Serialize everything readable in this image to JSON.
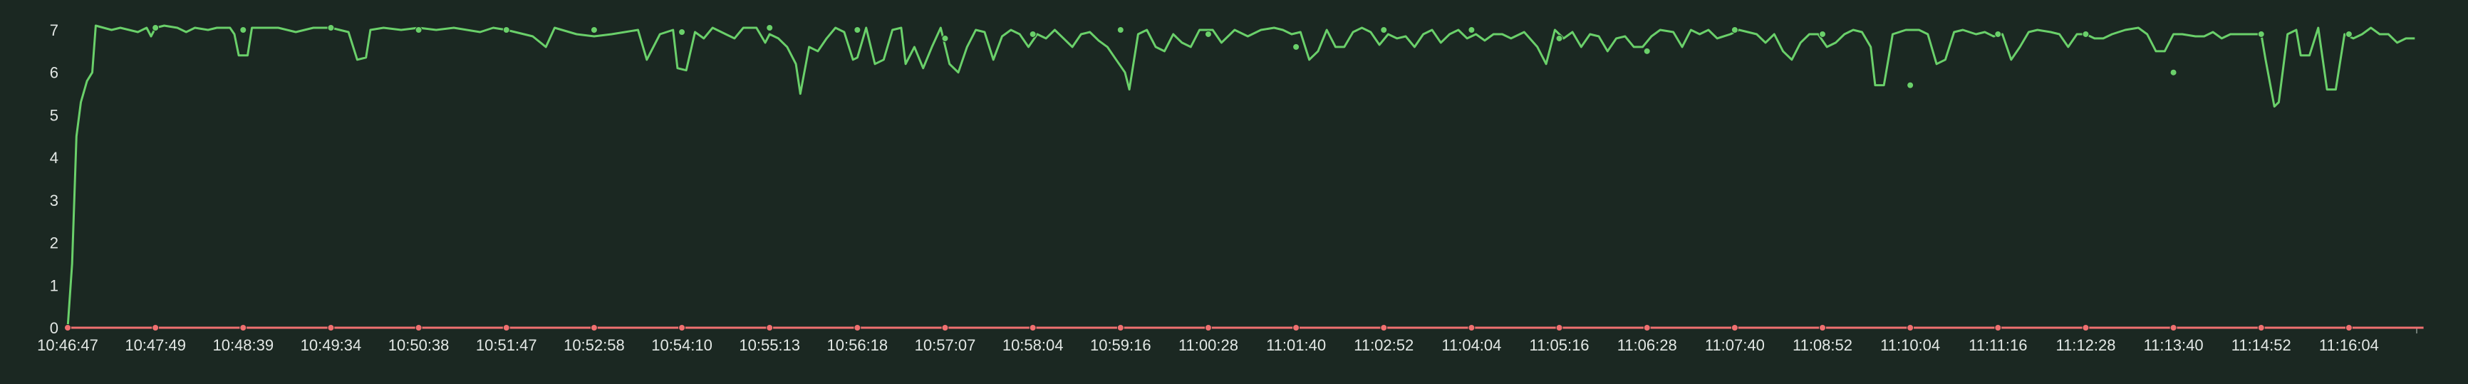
{
  "colors": {
    "background": "#1b2822",
    "series_green": "#6ad06a",
    "series_red": "#f07070",
    "axis": "#6f7a74",
    "tick_label": "#e3e8e5"
  },
  "chart_data": {
    "type": "line",
    "x_tick_labels": [
      "10:46:47",
      "10:47:49",
      "10:48:39",
      "10:49:34",
      "10:50:38",
      "10:51:47",
      "10:52:58",
      "10:54:10",
      "10:55:13",
      "10:56:18",
      "10:57:07",
      "10:58:04",
      "10:59:16",
      "11:00:28",
      "11:01:40",
      "11:02:52",
      "11:04:04",
      "11:05:16",
      "11:06:28",
      "11:07:40",
      "11:08:52",
      "11:10:04",
      "11:11:16",
      "11:12:28",
      "11:13:40",
      "11:14:52",
      "11:16:04"
    ],
    "ylim": [
      0,
      7
    ],
    "y_ticks": [
      0,
      1,
      2,
      3,
      4,
      5,
      6,
      7
    ],
    "grid": false,
    "legend": "none",
    "series": [
      {
        "color": "#6ad06a",
        "marker_values": [
          0,
          7.05,
          7.0,
          7.05,
          7.0,
          7.0,
          7.0,
          6.95,
          7.05,
          7.0,
          6.8,
          6.9,
          7.0,
          6.9,
          6.6,
          7.0,
          7.0,
          6.8,
          6.5,
          7.0,
          6.9,
          5.7,
          6.9,
          6.9,
          6.0,
          6.9,
          6.9
        ],
        "points": [
          [
            0,
            0
          ],
          [
            0.05,
            1.5
          ],
          [
            0.1,
            4.5
          ],
          [
            0.15,
            5.3
          ],
          [
            0.22,
            5.8
          ],
          [
            0.28,
            6.0
          ],
          [
            0.32,
            7.1
          ],
          [
            0.5,
            7.0
          ],
          [
            0.6,
            7.05
          ],
          [
            0.8,
            6.95
          ],
          [
            0.9,
            7.05
          ],
          [
            0.95,
            6.85
          ],
          [
            1,
            7.05
          ],
          [
            1.1,
            7.1
          ],
          [
            1.25,
            7.05
          ],
          [
            1.35,
            6.95
          ],
          [
            1.45,
            7.05
          ],
          [
            1.6,
            7.0
          ],
          [
            1.7,
            7.05
          ],
          [
            1.85,
            7.05
          ],
          [
            1.9,
            6.9
          ],
          [
            1.95,
            6.4
          ],
          [
            2.05,
            6.4
          ],
          [
            2.1,
            7.05
          ],
          [
            2.4,
            7.05
          ],
          [
            2.6,
            6.95
          ],
          [
            2.8,
            7.05
          ],
          [
            3,
            7.05
          ],
          [
            3.2,
            6.95
          ],
          [
            3.3,
            6.3
          ],
          [
            3.4,
            6.35
          ],
          [
            3.45,
            7.0
          ],
          [
            3.6,
            7.05
          ],
          [
            3.8,
            7.0
          ],
          [
            4,
            7.05
          ],
          [
            4.2,
            7.0
          ],
          [
            4.4,
            7.05
          ],
          [
            4.7,
            6.95
          ],
          [
            4.85,
            7.05
          ],
          [
            5,
            7.0
          ],
          [
            5.3,
            6.85
          ],
          [
            5.45,
            6.6
          ],
          [
            5.55,
            7.05
          ],
          [
            5.8,
            6.9
          ],
          [
            6,
            6.85
          ],
          [
            6.2,
            6.9
          ],
          [
            6.5,
            7.0
          ],
          [
            6.6,
            6.3
          ],
          [
            6.75,
            6.9
          ],
          [
            6.9,
            7.0
          ],
          [
            6.95,
            6.1
          ],
          [
            7.05,
            6.05
          ],
          [
            7.15,
            6.95
          ],
          [
            7.25,
            6.8
          ],
          [
            7.35,
            7.05
          ],
          [
            7.5,
            6.9
          ],
          [
            7.6,
            6.8
          ],
          [
            7.7,
            7.05
          ],
          [
            7.85,
            7.05
          ],
          [
            7.95,
            6.7
          ],
          [
            8,
            6.9
          ],
          [
            8.1,
            6.8
          ],
          [
            8.2,
            6.6
          ],
          [
            8.3,
            6.2
          ],
          [
            8.35,
            5.5
          ],
          [
            8.45,
            6.6
          ],
          [
            8.55,
            6.5
          ],
          [
            8.65,
            6.8
          ],
          [
            8.75,
            7.05
          ],
          [
            8.85,
            6.95
          ],
          [
            8.95,
            6.3
          ],
          [
            9,
            6.35
          ],
          [
            9.1,
            7.05
          ],
          [
            9.2,
            6.2
          ],
          [
            9.3,
            6.3
          ],
          [
            9.4,
            7.0
          ],
          [
            9.5,
            7.05
          ],
          [
            9.55,
            6.2
          ],
          [
            9.65,
            6.6
          ],
          [
            9.75,
            6.1
          ],
          [
            9.85,
            6.6
          ],
          [
            9.95,
            7.05
          ],
          [
            10.05,
            6.2
          ],
          [
            10.15,
            6.0
          ],
          [
            10.25,
            6.6
          ],
          [
            10.35,
            7.0
          ],
          [
            10.45,
            6.95
          ],
          [
            10.55,
            6.3
          ],
          [
            10.65,
            6.85
          ],
          [
            10.75,
            7.0
          ],
          [
            10.85,
            6.9
          ],
          [
            10.95,
            6.6
          ],
          [
            11.05,
            6.9
          ],
          [
            11.15,
            6.8
          ],
          [
            11.25,
            7.0
          ],
          [
            11.35,
            6.8
          ],
          [
            11.45,
            6.6
          ],
          [
            11.55,
            6.9
          ],
          [
            11.65,
            6.95
          ],
          [
            11.75,
            6.75
          ],
          [
            11.85,
            6.6
          ],
          [
            11.95,
            6.3
          ],
          [
            12.05,
            6.0
          ],
          [
            12.1,
            5.6
          ],
          [
            12.2,
            6.9
          ],
          [
            12.3,
            7.0
          ],
          [
            12.4,
            6.6
          ],
          [
            12.5,
            6.5
          ],
          [
            12.6,
            6.9
          ],
          [
            12.7,
            6.7
          ],
          [
            12.8,
            6.6
          ],
          [
            12.9,
            7.0
          ],
          [
            13.05,
            7.0
          ],
          [
            13.15,
            6.7
          ],
          [
            13.3,
            7.0
          ],
          [
            13.45,
            6.85
          ],
          [
            13.6,
            7.0
          ],
          [
            13.75,
            7.05
          ],
          [
            13.85,
            7.0
          ],
          [
            13.95,
            6.9
          ],
          [
            14.05,
            6.95
          ],
          [
            14.15,
            6.3
          ],
          [
            14.25,
            6.5
          ],
          [
            14.35,
            7.0
          ],
          [
            14.45,
            6.6
          ],
          [
            14.55,
            6.6
          ],
          [
            14.65,
            6.95
          ],
          [
            14.75,
            7.05
          ],
          [
            14.85,
            6.95
          ],
          [
            14.95,
            6.65
          ],
          [
            15.05,
            6.9
          ],
          [
            15.15,
            6.8
          ],
          [
            15.25,
            6.85
          ],
          [
            15.35,
            6.6
          ],
          [
            15.45,
            6.9
          ],
          [
            15.55,
            7.0
          ],
          [
            15.65,
            6.7
          ],
          [
            15.75,
            6.9
          ],
          [
            15.85,
            7.0
          ],
          [
            15.95,
            6.8
          ],
          [
            16.05,
            6.9
          ],
          [
            16.15,
            6.75
          ],
          [
            16.25,
            6.9
          ],
          [
            16.35,
            6.9
          ],
          [
            16.45,
            6.8
          ],
          [
            16.6,
            6.95
          ],
          [
            16.75,
            6.6
          ],
          [
            16.85,
            6.2
          ],
          [
            16.95,
            7.0
          ],
          [
            17.05,
            6.8
          ],
          [
            17.15,
            6.95
          ],
          [
            17.25,
            6.6
          ],
          [
            17.35,
            6.9
          ],
          [
            17.45,
            6.85
          ],
          [
            17.55,
            6.5
          ],
          [
            17.65,
            6.8
          ],
          [
            17.75,
            6.85
          ],
          [
            17.85,
            6.6
          ],
          [
            17.95,
            6.6
          ],
          [
            18.05,
            6.85
          ],
          [
            18.15,
            7.0
          ],
          [
            18.3,
            6.95
          ],
          [
            18.4,
            6.6
          ],
          [
            18.5,
            7.0
          ],
          [
            18.6,
            6.9
          ],
          [
            18.7,
            7.0
          ],
          [
            18.8,
            6.8
          ],
          [
            18.95,
            6.9
          ],
          [
            19.05,
            7.0
          ],
          [
            19.15,
            6.95
          ],
          [
            19.25,
            6.9
          ],
          [
            19.35,
            6.7
          ],
          [
            19.45,
            6.9
          ],
          [
            19.55,
            6.5
          ],
          [
            19.65,
            6.3
          ],
          [
            19.75,
            6.7
          ],
          [
            19.85,
            6.9
          ],
          [
            19.95,
            6.9
          ],
          [
            20.05,
            6.6
          ],
          [
            20.15,
            6.7
          ],
          [
            20.25,
            6.9
          ],
          [
            20.35,
            7.0
          ],
          [
            20.45,
            6.95
          ],
          [
            20.55,
            6.6
          ],
          [
            20.6,
            5.7
          ],
          [
            20.7,
            5.7
          ],
          [
            20.8,
            6.9
          ],
          [
            20.95,
            7.0
          ],
          [
            21.1,
            7.0
          ],
          [
            21.2,
            6.9
          ],
          [
            21.3,
            6.2
          ],
          [
            21.4,
            6.3
          ],
          [
            21.5,
            6.95
          ],
          [
            21.6,
            7.0
          ],
          [
            21.75,
            6.9
          ],
          [
            21.85,
            6.95
          ],
          [
            21.95,
            6.85
          ],
          [
            22.05,
            6.9
          ],
          [
            22.15,
            6.3
          ],
          [
            22.25,
            6.6
          ],
          [
            22.35,
            6.95
          ],
          [
            22.45,
            7.0
          ],
          [
            22.6,
            6.95
          ],
          [
            22.7,
            6.9
          ],
          [
            22.8,
            6.6
          ],
          [
            22.9,
            6.9
          ],
          [
            23,
            6.9
          ],
          [
            23.1,
            6.8
          ],
          [
            23.2,
            6.8
          ],
          [
            23.3,
            6.9
          ],
          [
            23.45,
            7.0
          ],
          [
            23.6,
            7.05
          ],
          [
            23.7,
            6.9
          ],
          [
            23.8,
            6.5
          ],
          [
            23.9,
            6.5
          ],
          [
            24,
            6.9
          ],
          [
            24.1,
            6.9
          ],
          [
            24.25,
            6.85
          ],
          [
            24.35,
            6.85
          ],
          [
            24.45,
            6.95
          ],
          [
            24.55,
            6.8
          ],
          [
            24.65,
            6.9
          ],
          [
            24.75,
            6.9
          ],
          [
            24.85,
            6.9
          ],
          [
            25,
            6.9
          ],
          [
            25.05,
            6.3
          ],
          [
            25.15,
            5.2
          ],
          [
            25.2,
            5.3
          ],
          [
            25.3,
            6.9
          ],
          [
            25.4,
            7.0
          ],
          [
            25.45,
            6.4
          ],
          [
            25.55,
            6.4
          ],
          [
            25.65,
            7.05
          ],
          [
            25.75,
            5.6
          ],
          [
            25.85,
            5.6
          ],
          [
            25.95,
            6.9
          ],
          [
            26.05,
            6.8
          ],
          [
            26.15,
            6.9
          ],
          [
            26.25,
            7.05
          ],
          [
            26.35,
            6.9
          ],
          [
            26.45,
            6.9
          ],
          [
            26.55,
            6.7
          ],
          [
            26.65,
            6.8
          ],
          [
            26.75,
            6.8
          ]
        ]
      },
      {
        "color": "#f07070",
        "marker_values": [
          0,
          0,
          0,
          0,
          0,
          0,
          0,
          0,
          0,
          0,
          0,
          0,
          0,
          0,
          0,
          0,
          0,
          0,
          0,
          0,
          0,
          0,
          0,
          0,
          0,
          0,
          0
        ],
        "points": [
          [
            0,
            0
          ],
          [
            26.85,
            0
          ]
        ]
      }
    ]
  }
}
